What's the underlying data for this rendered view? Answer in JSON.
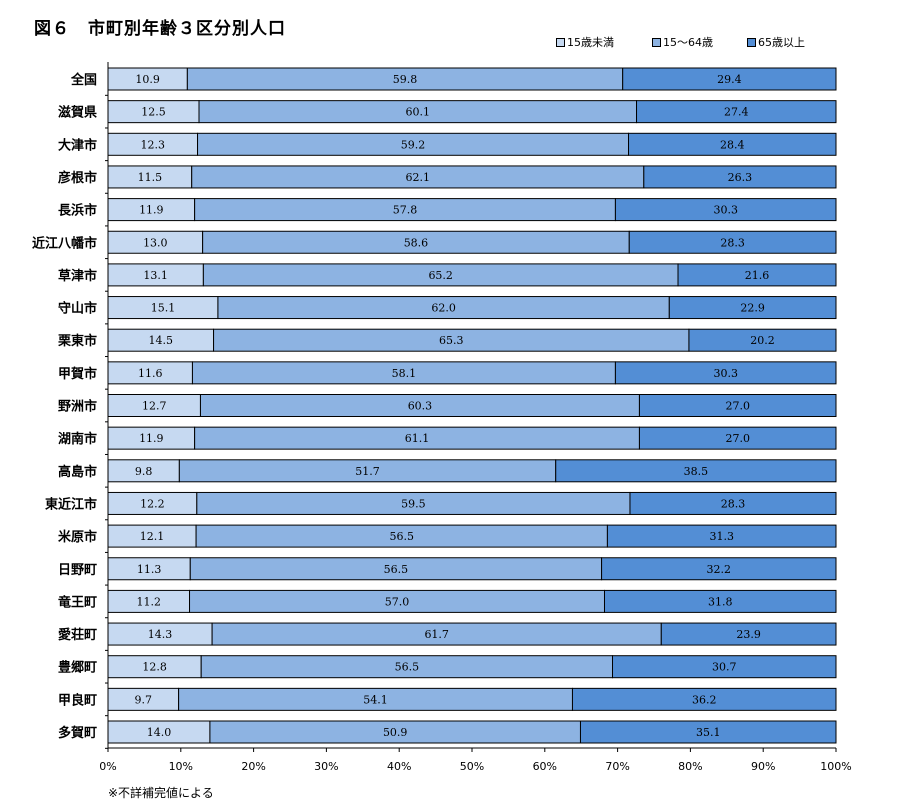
{
  "chart_data": {
    "type": "bar",
    "orientation": "horizontal",
    "stacked": true,
    "title": "図６　市町別年齢３区分別人口",
    "categories": [
      "全国",
      "滋賀県",
      "大津市",
      "彦根市",
      "長浜市",
      "近江八幡市",
      "草津市",
      "守山市",
      "栗東市",
      "甲賀市",
      "野洲市",
      "湖南市",
      "高島市",
      "東近江市",
      "米原市",
      "日野町",
      "竜王町",
      "愛荘町",
      "豊郷町",
      "甲良町",
      "多賀町"
    ],
    "series": [
      {
        "name": "15歳未満",
        "color": "#c6d9f1",
        "values": [
          10.9,
          12.5,
          12.3,
          11.5,
          11.9,
          13.0,
          13.1,
          15.1,
          14.5,
          11.6,
          12.7,
          11.9,
          9.8,
          12.2,
          12.1,
          11.3,
          11.2,
          14.3,
          12.8,
          9.7,
          14.0
        ]
      },
      {
        "name": "15～64歳",
        "color": "#8db3e2",
        "values": [
          59.8,
          60.1,
          59.2,
          62.1,
          57.8,
          58.6,
          65.2,
          62.0,
          65.3,
          58.1,
          60.3,
          61.1,
          51.7,
          59.5,
          56.5,
          56.5,
          57.0,
          61.7,
          56.5,
          54.1,
          50.9
        ]
      },
      {
        "name": "65歳以上",
        "color": "#538ed5",
        "values": [
          29.4,
          27.4,
          28.4,
          26.3,
          30.3,
          28.3,
          21.6,
          22.9,
          20.2,
          30.3,
          27.0,
          27.0,
          38.5,
          28.3,
          31.3,
          32.2,
          31.8,
          23.9,
          30.7,
          36.2,
          35.1
        ]
      }
    ],
    "xlim": [
      0,
      100
    ],
    "xticks": [
      "0%",
      "10%",
      "20%",
      "30%",
      "40%",
      "50%",
      "60%",
      "70%",
      "80%",
      "90%",
      "100%"
    ],
    "legend_position": "top-right",
    "grid": false
  },
  "footnote": "※不詳補完値による"
}
